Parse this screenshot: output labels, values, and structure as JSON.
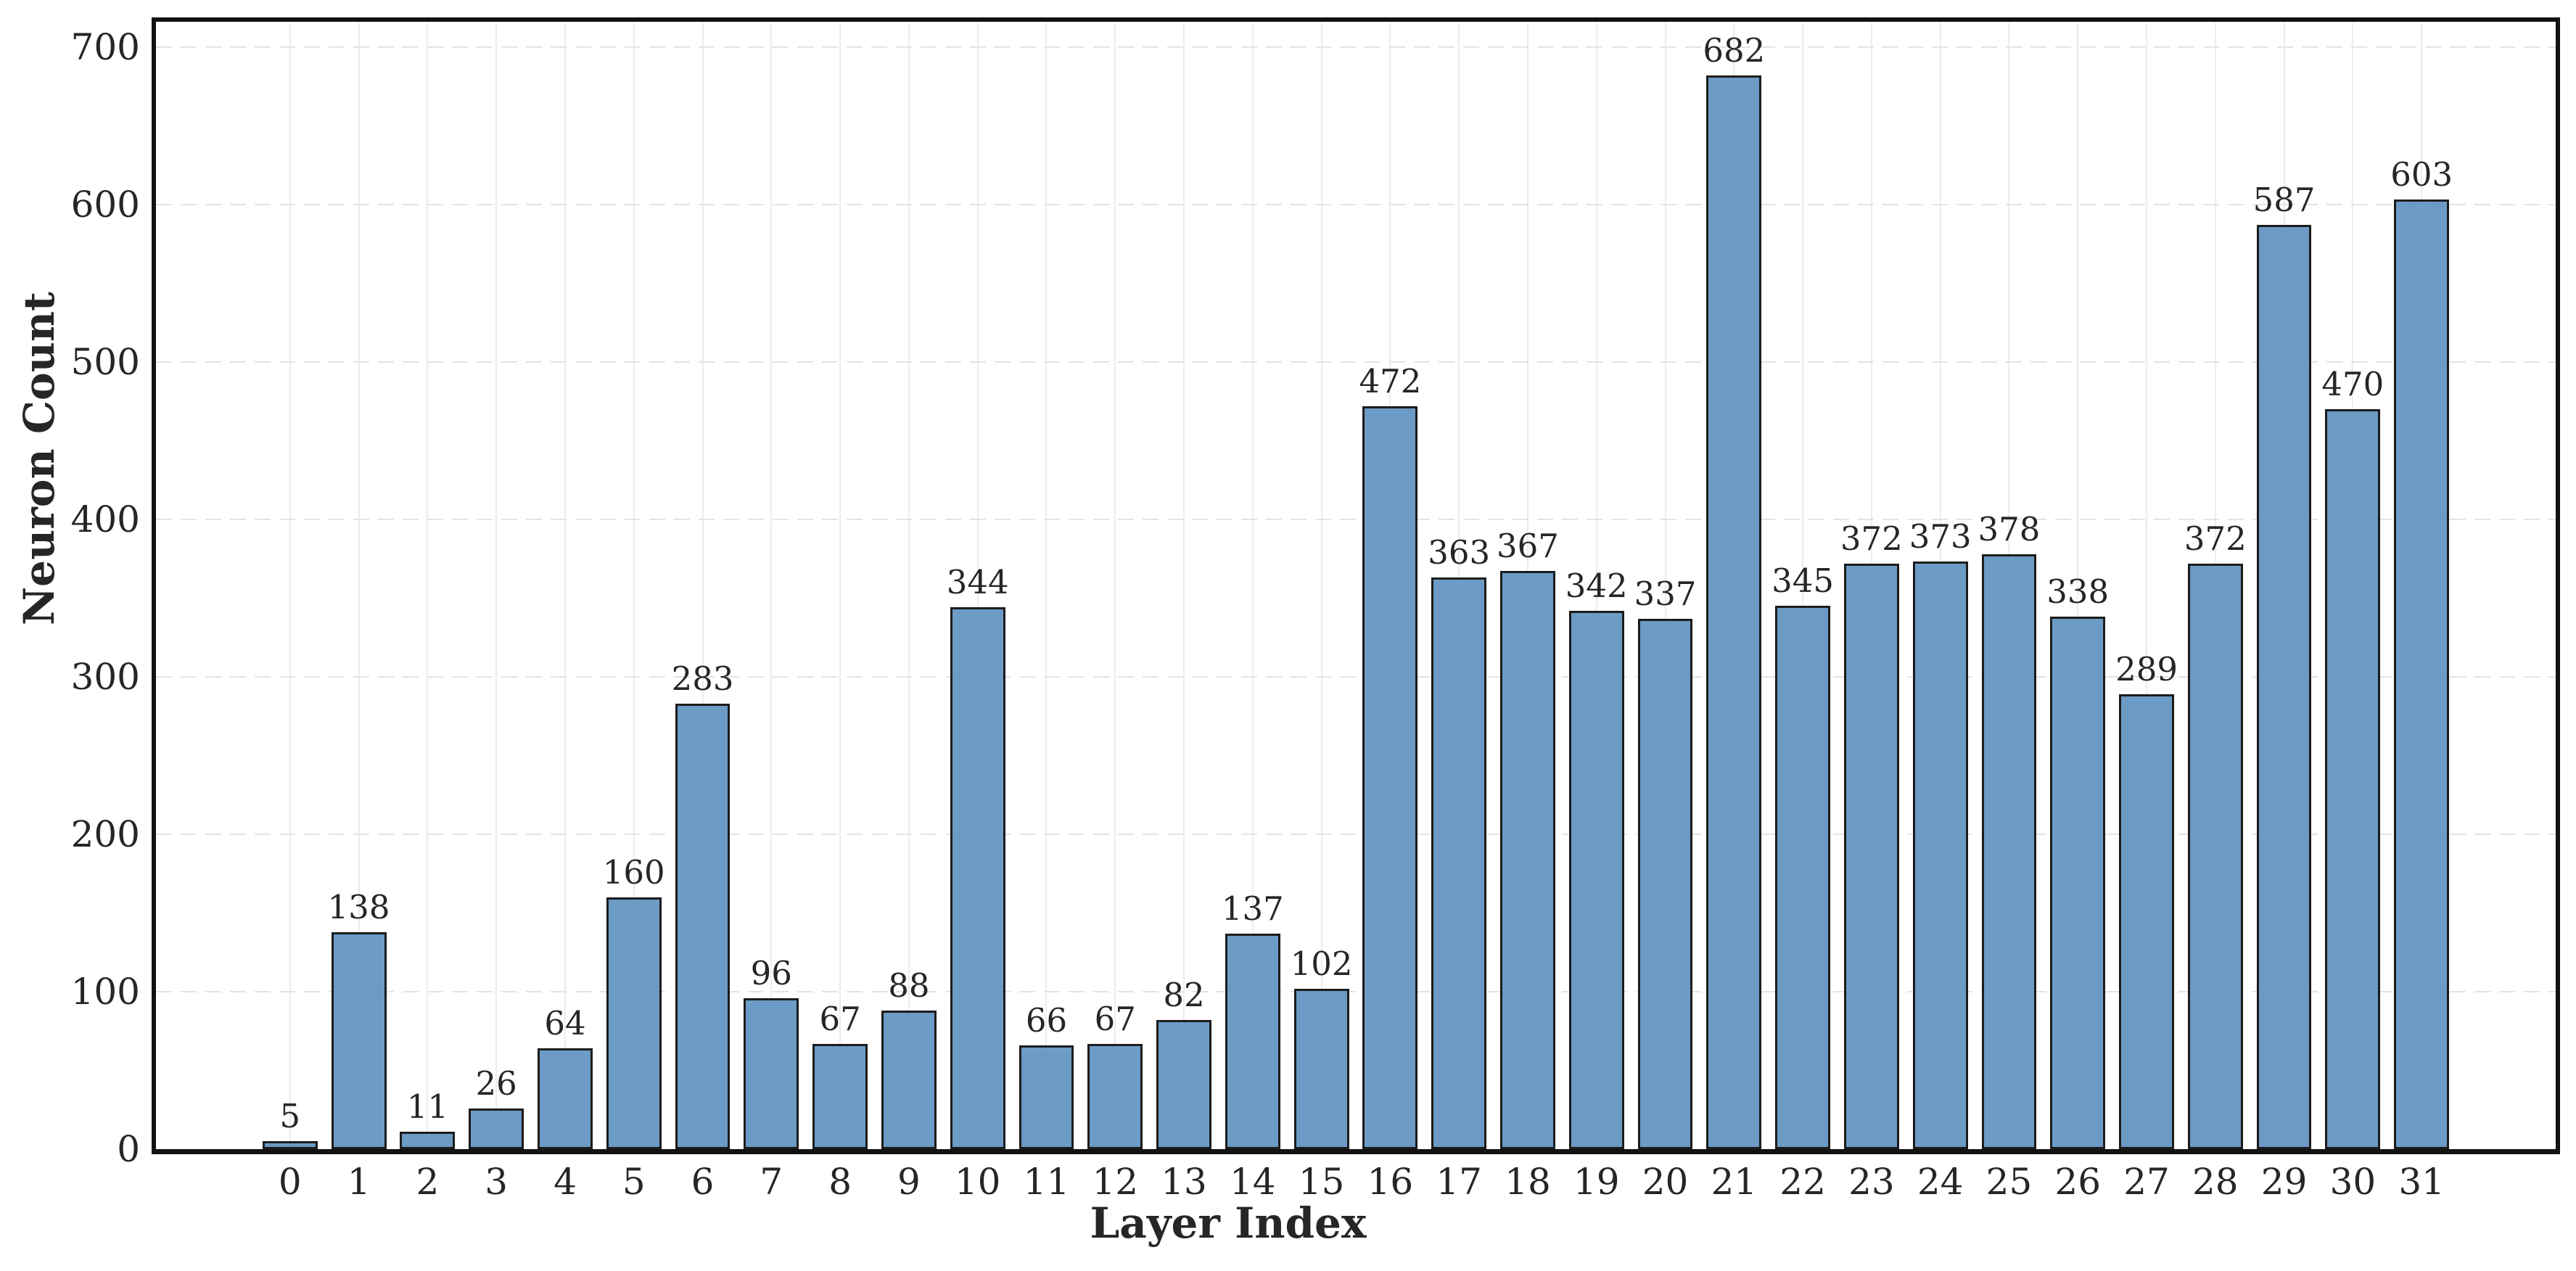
{
  "chart_data": {
    "type": "bar",
    "title": "",
    "xlabel": "Layer Index",
    "ylabel": "Neuron Count",
    "categories": [
      "0",
      "1",
      "2",
      "3",
      "4",
      "5",
      "6",
      "7",
      "8",
      "9",
      "10",
      "11",
      "12",
      "13",
      "14",
      "15",
      "16",
      "17",
      "18",
      "19",
      "20",
      "21",
      "22",
      "23",
      "24",
      "25",
      "26",
      "27",
      "28",
      "29",
      "30",
      "31"
    ],
    "values": [
      5,
      138,
      11,
      26,
      64,
      160,
      283,
      96,
      67,
      88,
      344,
      66,
      67,
      82,
      137,
      102,
      472,
      363,
      367,
      342,
      337,
      682,
      345,
      372,
      373,
      378,
      338,
      289,
      372,
      587,
      470,
      603
    ],
    "bar_value_labels": [
      "5",
      "138",
      "11",
      "26",
      "64",
      "160",
      "283",
      "96",
      "67",
      "88",
      "344",
      "66",
      "67",
      "82",
      "137",
      "102",
      "472",
      "363",
      "367",
      "342",
      "337",
      "682",
      "345",
      "372",
      "373",
      "378",
      "338",
      "289",
      "372",
      "587",
      "470",
      "603"
    ],
    "yticks": [
      0,
      100,
      200,
      300,
      400,
      500,
      600,
      700
    ],
    "ytick_labels": [
      "0",
      "100",
      "200",
      "300",
      "400",
      "500",
      "600",
      "700"
    ],
    "ylim": [
      0,
      716
    ],
    "grid": {
      "horizontal": "dashed",
      "vertical": "solid",
      "on": true
    },
    "legend": null,
    "colors": {
      "bar_fill": "#6c9cc5",
      "bar_fill_rgba": "rgba(95,147,192,0.92)",
      "bar_edge": "#1c1c1c",
      "spine": "#121212",
      "text": "#262626",
      "h_grid": "#e3e3e3",
      "v_grid": "#ececec",
      "background": "#ffffff"
    }
  }
}
